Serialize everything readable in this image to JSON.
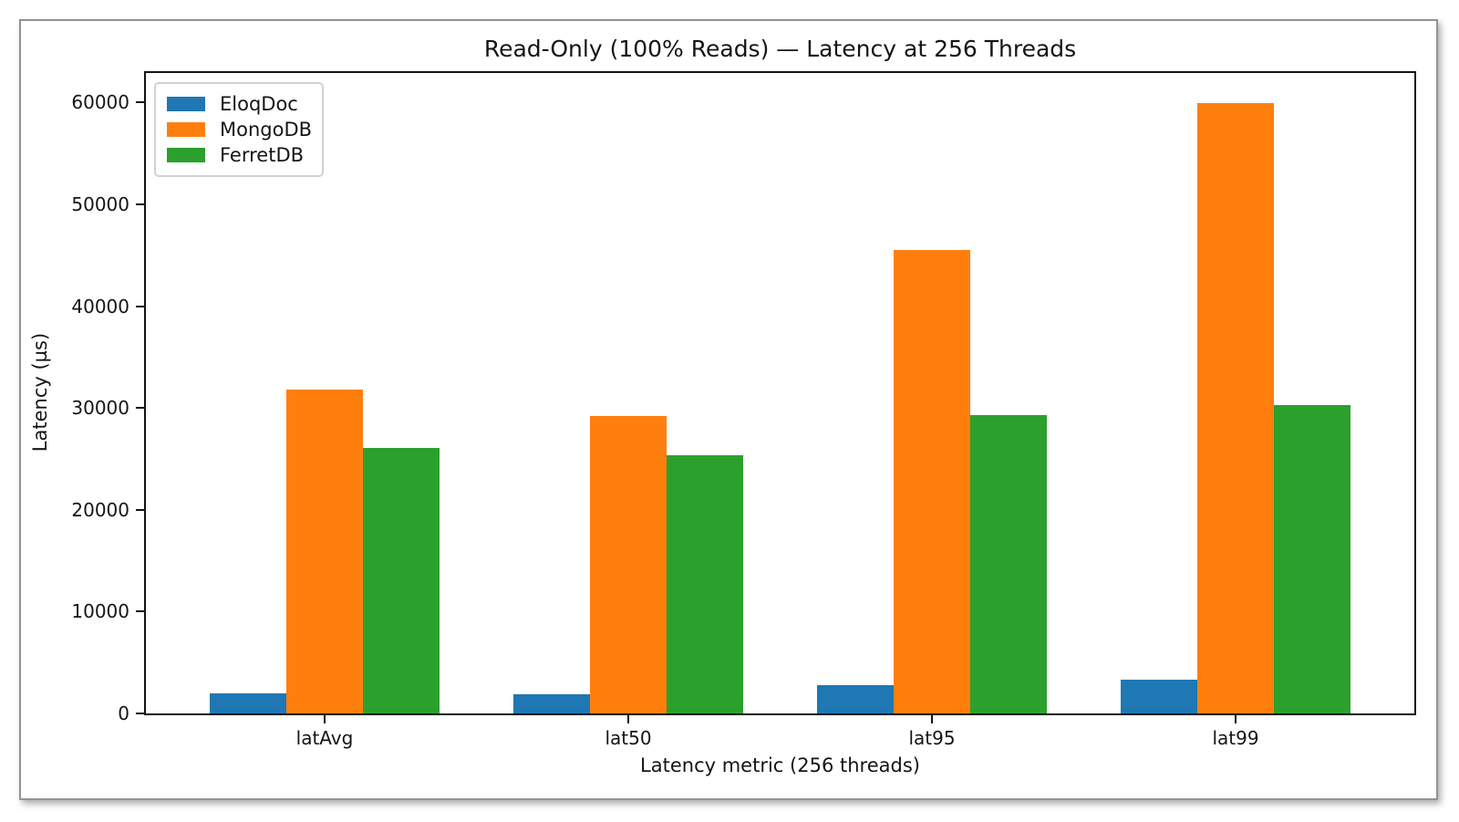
{
  "chart_data": {
    "type": "bar",
    "title": "Read-Only (100% Reads) — Latency at 256 Threads",
    "xlabel": "Latency metric (256 threads)",
    "ylabel": "Latency (µs)",
    "categories": [
      "latAvg",
      "lat50",
      "lat95",
      "lat99"
    ],
    "series": [
      {
        "name": "EloqDoc",
        "color": "#1f77b4",
        "values": [
          2000,
          1900,
          2800,
          3300
        ]
      },
      {
        "name": "MongoDB",
        "color": "#ff7f0e",
        "values": [
          31800,
          29200,
          45500,
          59900
        ]
      },
      {
        "name": "FerretDB",
        "color": "#2ca02c",
        "values": [
          26100,
          25400,
          29300,
          30300
        ]
      }
    ],
    "ylim": [
      0,
      62900
    ],
    "yticks": [
      0,
      10000,
      20000,
      30000,
      40000,
      50000,
      60000
    ],
    "legend_position": "upper left",
    "grid": false,
    "axis_color": "#141414"
  }
}
